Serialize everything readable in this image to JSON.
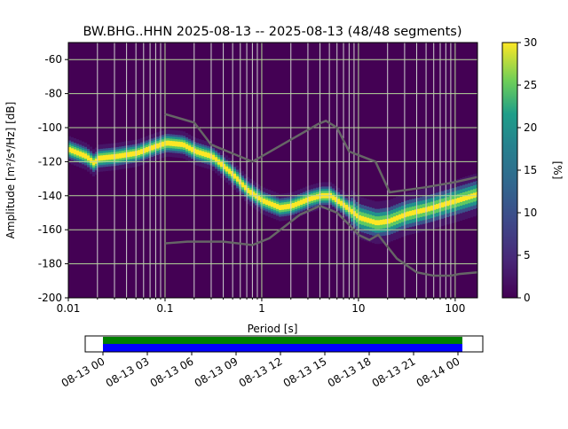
{
  "chart_data": {
    "type": "heatmap",
    "title": "BW.BHG..HHN   2025-08-13 -- 2025-08-13  (48/48 segments)",
    "xlabel": "Period [s]",
    "ylabel": "Amplitude [m²/s⁴/Hz] [dB]",
    "xscale": "log",
    "xlim": [
      0.01,
      170
    ],
    "ylim": [
      -200,
      -50
    ],
    "xticks": [
      {
        "v": 0.01,
        "label": "0.01"
      },
      {
        "v": 0.1,
        "label": "0.1"
      },
      {
        "v": 1,
        "label": "1"
      },
      {
        "v": 10,
        "label": "10"
      },
      {
        "v": 100,
        "label": "100"
      }
    ],
    "yticks": [
      -60,
      -80,
      -100,
      -120,
      -140,
      -160,
      -180,
      -200
    ],
    "colorbar": {
      "label": "[%]",
      "range": [
        0,
        30
      ],
      "ticks": [
        0,
        5,
        10,
        15,
        20,
        25,
        30
      ]
    },
    "mode": {
      "period": [
        0.01,
        0.015,
        0.018,
        0.02,
        0.03,
        0.05,
        0.07,
        0.1,
        0.15,
        0.2,
        0.3,
        0.5,
        0.7,
        1,
        1.5,
        2,
        3,
        4,
        5,
        7,
        10,
        15,
        20,
        30,
        50,
        100,
        170
      ],
      "db": [
        -113,
        -117,
        -121,
        -118,
        -117,
        -115,
        -112,
        -109,
        -110,
        -114,
        -117,
        -128,
        -137,
        -143,
        -147,
        -146,
        -142,
        -140,
        -140,
        -146,
        -153,
        -156,
        -155,
        -151,
        -148,
        -143,
        -139
      ]
    },
    "nhnm": {
      "period": [
        0.1,
        0.2,
        0.3,
        0.8,
        3.8,
        4.6,
        6,
        8,
        15,
        21,
        50,
        100,
        170
      ],
      "db": [
        -92,
        -97,
        -110,
        -120,
        -98,
        -96,
        -100,
        -114,
        -120,
        -138,
        -135,
        -132,
        -129
      ]
    },
    "nlnm": {
      "period": [
        0.1,
        0.17,
        0.4,
        0.8,
        1.2,
        2.5,
        4,
        6,
        8,
        10,
        13,
        16,
        25,
        40,
        60,
        90,
        110,
        170
      ],
      "db": [
        -168,
        -167,
        -167,
        -169,
        -165,
        -151,
        -146,
        -150,
        -157,
        -163,
        -166,
        -163,
        -177,
        -185,
        -187,
        -187,
        -186,
        -185
      ]
    },
    "availability": {
      "ticks": [
        "08-13 00",
        "08-13 03",
        "08-13 06",
        "08-13 09",
        "08-13 12",
        "08-13 15",
        "08-13 18",
        "08-13 21",
        "08-14 00"
      ],
      "coverage_hours": [
        0,
        24.3
      ],
      "colors": {
        "data": "#008000",
        "used": "#0000ff"
      }
    },
    "colors": {
      "background": "#440154",
      "noise_models": "#666666"
    }
  }
}
